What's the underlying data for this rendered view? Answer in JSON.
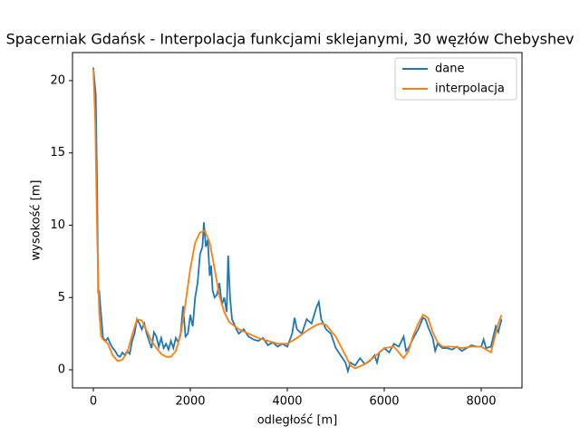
{
  "chart_data": {
    "type": "line",
    "title": "Spacerniak Gdańsk - Interpolacja funkcjami sklejanymi, 30 węzłów Chebyshev",
    "x_label": "odległość [m]",
    "y_label": "wysokość [m]",
    "xlim": [
      -430,
      8841
    ],
    "ylim": [
      -1.25,
      21.94
    ],
    "xticks": [
      0,
      2000,
      4000,
      6000,
      8000
    ],
    "yticks": [
      0,
      5,
      10,
      15,
      20
    ],
    "grid": false,
    "legend": "upper right",
    "series": [
      {
        "name": "dane",
        "color": "#1f77b4",
        "x": [
          0,
          50,
          80,
          100,
          120,
          150,
          180,
          200,
          250,
          300,
          350,
          400,
          450,
          500,
          550,
          600,
          650,
          700,
          750,
          800,
          850,
          900,
          950,
          1000,
          1050,
          1100,
          1150,
          1200,
          1250,
          1300,
          1350,
          1400,
          1450,
          1500,
          1550,
          1600,
          1650,
          1700,
          1750,
          1800,
          1850,
          1900,
          1950,
          2000,
          2050,
          2100,
          2150,
          2200,
          2250,
          2280,
          2320,
          2360,
          2400,
          2430,
          2460,
          2500,
          2550,
          2600,
          2650,
          2700,
          2750,
          2780,
          2820,
          2860,
          2900,
          2950,
          3000,
          3100,
          3200,
          3300,
          3400,
          3500,
          3600,
          3700,
          3800,
          3900,
          4000,
          4100,
          4150,
          4200,
          4300,
          4400,
          4500,
          4600,
          4650,
          4700,
          4800,
          4900,
          5000,
          5100,
          5200,
          5250,
          5300,
          5400,
          5500,
          5600,
          5700,
          5800,
          5850,
          5900,
          6000,
          6100,
          6200,
          6300,
          6400,
          6450,
          6500,
          6600,
          6700,
          6800,
          6850,
          6900,
          7000,
          7050,
          7100,
          7200,
          7300,
          7400,
          7500,
          7600,
          7700,
          7800,
          7900,
          8000,
          8050,
          8100,
          8200,
          8300,
          8350,
          8420
        ],
        "values": [
          20.9,
          19,
          12,
          5.3,
          5.5,
          4.2,
          3,
          2.2,
          2,
          2.2,
          1.8,
          1.5,
          1.3,
          1,
          0.9,
          1.2,
          1,
          1.3,
          1.1,
          2,
          2.5,
          3.5,
          3.2,
          2.8,
          3.2,
          2.5,
          2,
          1.5,
          2.6,
          2.3,
          1.6,
          2.2,
          1.5,
          1.8,
          1.4,
          2,
          1.5,
          2.2,
          1.9,
          2.5,
          4.4,
          2.3,
          2.5,
          3.8,
          3,
          5,
          6,
          8,
          8.5,
          10.2,
          8.5,
          9,
          6.5,
          7.2,
          5.5,
          5,
          5.2,
          6,
          4.5,
          5,
          4,
          7.9,
          5,
          3.5,
          3.2,
          2.8,
          2.5,
          2.8,
          2.3,
          2.1,
          2,
          2.2,
          1.7,
          1.9,
          1.6,
          1.8,
          1.6,
          2.5,
          3.6,
          2.8,
          2.5,
          3.5,
          3.2,
          4.3,
          4.7,
          3.5,
          2.8,
          2.5,
          1.5,
          1,
          0.5,
          -0.1,
          0.5,
          0.3,
          0.8,
          0.4,
          0.6,
          1,
          0.5,
          1.2,
          1.5,
          1.2,
          1.8,
          1.6,
          2.3,
          1.3,
          1.5,
          2.2,
          2.8,
          3.6,
          3.5,
          3,
          2.2,
          1.3,
          1.8,
          1.5,
          1.5,
          1.4,
          1.6,
          1.3,
          1.5,
          1.7,
          1.6,
          1.6,
          2.1,
          1.5,
          1.6,
          3,
          2.6,
          3.5
        ]
      },
      {
        "name": "interpolacja",
        "color": "#ff7f0e",
        "x": [
          0,
          40,
          80,
          120,
          160,
          200,
          300,
          400,
          500,
          600,
          700,
          800,
          900,
          1000,
          1100,
          1200,
          1300,
          1400,
          1500,
          1600,
          1700,
          1800,
          1900,
          2000,
          2100,
          2200,
          2300,
          2400,
          2500,
          2600,
          2700,
          2800,
          3000,
          3200,
          3400,
          3600,
          3800,
          4000,
          4200,
          4400,
          4600,
          4700,
          4800,
          5000,
          5200,
          5300,
          5400,
          5600,
          5800,
          6000,
          6200,
          6300,
          6400,
          6500,
          6600,
          6700,
          6800,
          6900,
          7000,
          7100,
          7200,
          7400,
          7600,
          7800,
          8000,
          8100,
          8200,
          8300,
          8350,
          8420
        ],
        "values": [
          20.8,
          17,
          9,
          4,
          2.3,
          2.1,
          1.8,
          1,
          0.6,
          0.7,
          1.2,
          2.4,
          3.5,
          3.4,
          2.7,
          2,
          1.5,
          1.1,
          0.9,
          0.9,
          1.3,
          2.4,
          4.6,
          7,
          8.8,
          9.5,
          9.6,
          8.8,
          7,
          5.1,
          4,
          3.3,
          2.8,
          2.5,
          2.2,
          2,
          1.8,
          1.8,
          2.2,
          2.7,
          3.1,
          3.2,
          3.1,
          2.3,
          1,
          0.3,
          0.1,
          0.4,
          0.9,
          1.5,
          1.6,
          1.2,
          0.8,
          1.3,
          2.4,
          3.2,
          3.8,
          3.6,
          2.6,
          1.9,
          1.6,
          1.6,
          1.5,
          1.6,
          1.6,
          1.4,
          1.2,
          2.5,
          3.2,
          3.8
        ]
      }
    ]
  }
}
